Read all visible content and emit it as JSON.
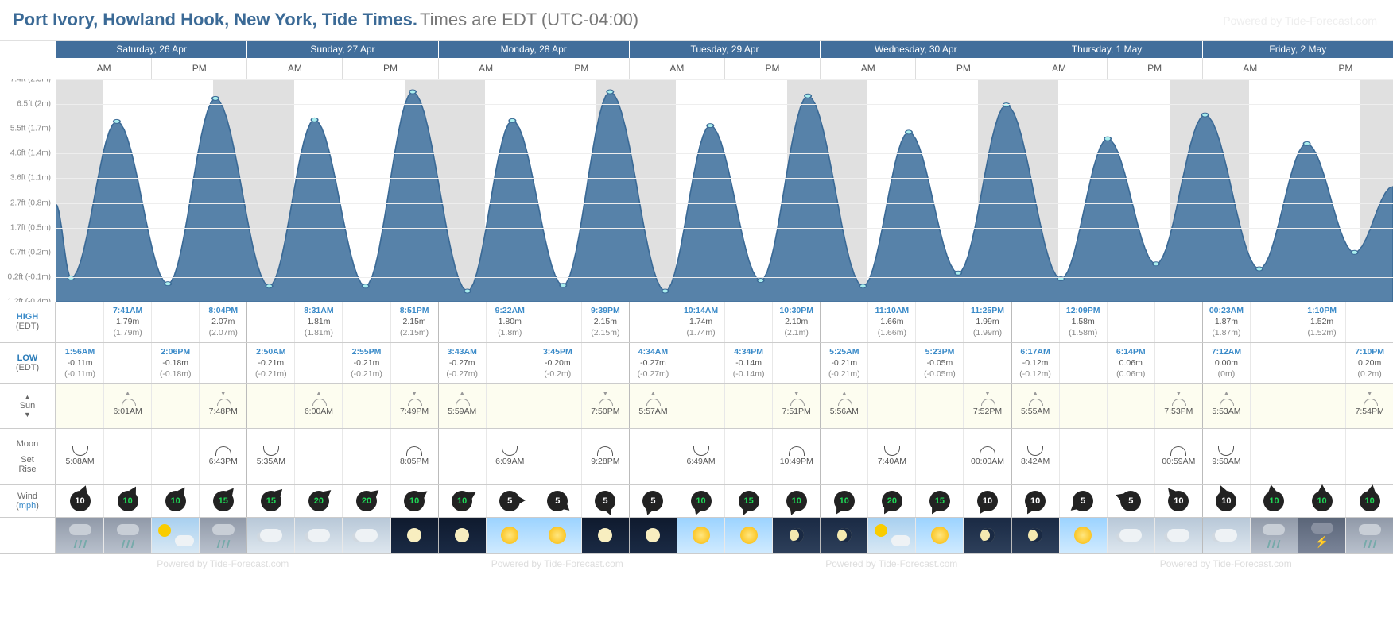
{
  "title": {
    "location": "Port Ivory, Howland Hook, New York, Tide Times.",
    "subtitle": "Times are EDT (UTC-04:00)"
  },
  "watermark": "Powered by Tide-Forecast.com",
  "row_labels": {
    "high": "HIGH",
    "low": "LOW",
    "tz": "(EDT)",
    "sun": "Sun",
    "moon": "Moon",
    "moon_set": "Set",
    "moon_rise": "Rise",
    "wind": "Wind",
    "wind_unit": "mph"
  },
  "yaxis": {
    "labels": [
      "7.4ft (2.3m)",
      "6.5ft (2m)",
      "5.5ft (1.7m)",
      "4.6ft (1.4m)",
      "3.6ft (1.1m)",
      "2.7ft (0.8m)",
      "1.7ft (0.5m)",
      "0.7ft (0.2m)",
      "0.2ft (-0.1m)",
      "1.2ft (-0.4m)"
    ],
    "heights_m": [
      2.3,
      2.0,
      1.7,
      1.4,
      1.1,
      0.8,
      0.5,
      0.2,
      -0.1,
      -0.4
    ],
    "range_m": [
      -0.4,
      2.3
    ]
  },
  "days": [
    {
      "label": "Saturday, 26 Apr"
    },
    {
      "label": "Sunday, 27 Apr"
    },
    {
      "label": "Monday, 28 Apr"
    },
    {
      "label": "Tuesday, 29 Apr"
    },
    {
      "label": "Wednesday, 30 Apr"
    },
    {
      "label": "Thursday, 1 May"
    },
    {
      "label": "Friday, 2 May"
    }
  ],
  "ampm": [
    "AM",
    "PM"
  ],
  "night_shades": [
    {
      "start": 0,
      "end": 0.251
    },
    {
      "start": 0.825,
      "end": 1.25
    },
    {
      "start": 1.826,
      "end": 2.249
    },
    {
      "start": 2.827,
      "end": 3.248
    },
    {
      "start": 3.827,
      "end": 4.247
    },
    {
      "start": 4.828,
      "end": 5.246
    },
    {
      "start": 5.829,
      "end": 6.245
    },
    {
      "start": 6.829,
      "end": 7
    }
  ],
  "tide_extremes": [
    {
      "type": "low",
      "day": 0,
      "hour": 1.93,
      "m": -0.11
    },
    {
      "type": "high",
      "day": 0,
      "hour": 7.68,
      "m": 1.79
    },
    {
      "type": "low",
      "day": 0,
      "hour": 14.1,
      "m": -0.18
    },
    {
      "type": "high",
      "day": 0,
      "hour": 20.07,
      "m": 2.07
    },
    {
      "type": "low",
      "day": 1,
      "hour": 2.83,
      "m": -0.21
    },
    {
      "type": "high",
      "day": 1,
      "hour": 8.52,
      "m": 1.81
    },
    {
      "type": "low",
      "day": 1,
      "hour": 14.92,
      "m": -0.21
    },
    {
      "type": "high",
      "day": 1,
      "hour": 20.85,
      "m": 2.15
    },
    {
      "type": "low",
      "day": 2,
      "hour": 3.72,
      "m": -0.27
    },
    {
      "type": "high",
      "day": 2,
      "hour": 9.37,
      "m": 1.8
    },
    {
      "type": "low",
      "day": 2,
      "hour": 15.75,
      "m": -0.2
    },
    {
      "type": "high",
      "day": 2,
      "hour": 21.65,
      "m": 2.15
    },
    {
      "type": "low",
      "day": 3,
      "hour": 4.57,
      "m": -0.27
    },
    {
      "type": "high",
      "day": 3,
      "hour": 10.23,
      "m": 1.74
    },
    {
      "type": "low",
      "day": 3,
      "hour": 16.57,
      "m": -0.14
    },
    {
      "type": "high",
      "day": 3,
      "hour": 22.5,
      "m": 2.1
    },
    {
      "type": "low",
      "day": 4,
      "hour": 5.42,
      "m": -0.21
    },
    {
      "type": "high",
      "day": 4,
      "hour": 11.17,
      "m": 1.66
    },
    {
      "type": "low",
      "day": 4,
      "hour": 17.38,
      "m": -0.05
    },
    {
      "type": "high",
      "day": 4,
      "hour": 23.42,
      "m": 1.99
    },
    {
      "type": "low",
      "day": 5,
      "hour": 6.28,
      "m": -0.12
    },
    {
      "type": "high",
      "day": 5,
      "hour": 12.15,
      "m": 1.58
    },
    {
      "type": "low",
      "day": 5,
      "hour": 18.23,
      "m": 0.06
    },
    {
      "type": "high",
      "day": 6,
      "hour": 0.38,
      "m": 1.87
    },
    {
      "type": "low",
      "day": 6,
      "hour": 7.2,
      "m": 0.0
    },
    {
      "type": "high",
      "day": 6,
      "hour": 13.17,
      "m": 1.52
    },
    {
      "type": "low",
      "day": 6,
      "hour": 19.17,
      "m": 0.2
    }
  ],
  "slots": [
    {
      "high": null,
      "low": {
        "time": "1:56AM",
        "m": "-0.11m",
        "p": "(-0.11m)"
      },
      "sun": null,
      "moon": {
        "type": "rise",
        "time": "5:08AM"
      },
      "wind": {
        "spd": 10,
        "dir": 20,
        "c": "black"
      },
      "wx": "rain"
    },
    {
      "high": {
        "time": "7:41AM",
        "m": "1.79m",
        "p": "(1.79m)"
      },
      "low": null,
      "sun": {
        "type": "rise",
        "time": "6:01AM"
      },
      "moon": null,
      "wind": {
        "spd": 10,
        "dir": 30,
        "c": "green"
      },
      "wx": "rain"
    },
    {
      "high": null,
      "low": {
        "time": "2:06PM",
        "m": "-0.18m",
        "p": "(-0.18m)"
      },
      "sun": null,
      "moon": null,
      "wind": {
        "spd": 10,
        "dir": 35,
        "c": "green"
      },
      "wx": "partly"
    },
    {
      "high": {
        "time": "8:04PM",
        "m": "2.07m",
        "p": "(2.07m)"
      },
      "low": null,
      "sun": {
        "type": "set",
        "time": "7:48PM"
      },
      "moon": {
        "type": "set",
        "time": "6:43PM"
      },
      "wind": {
        "spd": 15,
        "dir": 40,
        "c": "green"
      },
      "wx": "rain"
    },
    {
      "high": null,
      "low": {
        "time": "2:50AM",
        "m": "-0.21m",
        "p": "(-0.21m)"
      },
      "sun": null,
      "moon": {
        "type": "rise",
        "time": "5:35AM"
      },
      "wind": {
        "spd": 15,
        "dir": 45,
        "c": "green"
      },
      "wx": "cloudy"
    },
    {
      "high": {
        "time": "8:31AM",
        "m": "1.81m",
        "p": "(1.81m)"
      },
      "low": null,
      "sun": {
        "type": "rise",
        "time": "6:00AM"
      },
      "moon": null,
      "wind": {
        "spd": 20,
        "dir": 50,
        "c": "green"
      },
      "wx": "cloudy"
    },
    {
      "high": null,
      "low": {
        "time": "2:55PM",
        "m": "-0.21m",
        "p": "(-0.21m)"
      },
      "sun": null,
      "moon": null,
      "wind": {
        "spd": 20,
        "dir": 50,
        "c": "green"
      },
      "wx": "cloudy"
    },
    {
      "high": {
        "time": "8:51PM",
        "m": "2.15m",
        "p": "(2.15m)"
      },
      "low": null,
      "sun": {
        "type": "set",
        "time": "7:49PM"
      },
      "moon": {
        "type": "set",
        "time": "8:05PM"
      },
      "wind": {
        "spd": 10,
        "dir": 55,
        "c": "green"
      },
      "wx": "clear-night"
    },
    {
      "high": null,
      "low": {
        "time": "3:43AM",
        "m": "-0.27m",
        "p": "(-0.27m)"
      },
      "sun": {
        "type": "rise",
        "time": "5:59AM"
      },
      "moon": null,
      "wind": {
        "spd": 10,
        "dir": 60,
        "c": "green"
      },
      "wx": "clear-night"
    },
    {
      "high": {
        "time": "9:22AM",
        "m": "1.80m",
        "p": "(1.8m)"
      },
      "low": null,
      "sun": null,
      "moon": {
        "type": "rise",
        "time": "6:09AM"
      },
      "wind": {
        "spd": 5,
        "dir": 90,
        "c": "black"
      },
      "wx": "sunny"
    },
    {
      "high": null,
      "low": {
        "time": "3:45PM",
        "m": "-0.20m",
        "p": "(-0.2m)"
      },
      "sun": null,
      "moon": null,
      "wind": {
        "spd": 5,
        "dir": 130,
        "c": "black"
      },
      "wx": "sunny"
    },
    {
      "high": {
        "time": "9:39PM",
        "m": "2.15m",
        "p": "(2.15m)"
      },
      "low": null,
      "sun": {
        "type": "set",
        "time": "7:50PM"
      },
      "moon": {
        "type": "set",
        "time": "9:28PM"
      },
      "wind": {
        "spd": 5,
        "dir": 160,
        "c": "black"
      },
      "wx": "clear-night"
    },
    {
      "high": null,
      "low": {
        "time": "4:34AM",
        "m": "-0.27m",
        "p": "(-0.27m)"
      },
      "sun": {
        "type": "rise",
        "time": "5:57AM"
      },
      "moon": null,
      "wind": {
        "spd": 5,
        "dir": 200,
        "c": "black"
      },
      "wx": "clear-night"
    },
    {
      "high": {
        "time": "10:14AM",
        "m": "1.74m",
        "p": "(1.74m)"
      },
      "low": null,
      "sun": null,
      "moon": {
        "type": "rise",
        "time": "6:49AM"
      },
      "wind": {
        "spd": 10,
        "dir": 200,
        "c": "green"
      },
      "wx": "sunny"
    },
    {
      "high": null,
      "low": {
        "time": "4:34PM",
        "m": "-0.14m",
        "p": "(-0.14m)"
      },
      "sun": null,
      "moon": null,
      "wind": {
        "spd": 15,
        "dir": 200,
        "c": "green"
      },
      "wx": "sunny"
    },
    {
      "high": {
        "time": "10:30PM",
        "m": "2.10m",
        "p": "(2.1m)"
      },
      "low": null,
      "sun": {
        "type": "set",
        "time": "7:51PM"
      },
      "moon": {
        "type": "set",
        "time": "10:49PM"
      },
      "wind": {
        "spd": 10,
        "dir": 200,
        "c": "green"
      },
      "wx": "night"
    },
    {
      "high": null,
      "low": {
        "time": "5:25AM",
        "m": "-0.21m",
        "p": "(-0.21m)"
      },
      "sun": {
        "type": "rise",
        "time": "5:56AM"
      },
      "moon": null,
      "wind": {
        "spd": 10,
        "dir": 210,
        "c": "green"
      },
      "wx": "night"
    },
    {
      "high": {
        "time": "11:10AM",
        "m": "1.66m",
        "p": "(1.66m)"
      },
      "low": null,
      "sun": null,
      "moon": {
        "type": "rise",
        "time": "7:40AM"
      },
      "wind": {
        "spd": 20,
        "dir": 210,
        "c": "green"
      },
      "wx": "partly"
    },
    {
      "high": null,
      "low": {
        "time": "5:23PM",
        "m": "-0.05m",
        "p": "(-0.05m)"
      },
      "sun": null,
      "moon": null,
      "wind": {
        "spd": 15,
        "dir": 210,
        "c": "green"
      },
      "wx": "sunny"
    },
    {
      "high": {
        "time": "11:25PM",
        "m": "1.99m",
        "p": "(1.99m)"
      },
      "low": null,
      "sun": {
        "type": "set",
        "time": "7:52PM"
      },
      "moon": {
        "type": "set",
        "time": "00:00AM"
      },
      "wind": {
        "spd": 10,
        "dir": 210,
        "c": "black"
      },
      "wx": "night"
    },
    {
      "high": null,
      "low": {
        "time": "6:17AM",
        "m": "-0.12m",
        "p": "(-0.12m)"
      },
      "sun": {
        "type": "rise",
        "time": "5:55AM"
      },
      "moon": {
        "type": "rise",
        "time": "8:42AM"
      },
      "wind": {
        "spd": 10,
        "dir": 210,
        "c": "black"
      },
      "wx": "night"
    },
    {
      "high": {
        "time": "12:09PM",
        "m": "1.58m",
        "p": "(1.58m)"
      },
      "low": null,
      "sun": null,
      "moon": null,
      "wind": {
        "spd": 5,
        "dir": 230,
        "c": "black"
      },
      "wx": "sunny"
    },
    {
      "high": null,
      "low": {
        "time": "6:14PM",
        "m": "0.06m",
        "p": "(0.06m)"
      },
      "sun": null,
      "moon": null,
      "wind": {
        "spd": 5,
        "dir": 290,
        "c": "black"
      },
      "wx": "cloudy"
    },
    {
      "high": null,
      "low": null,
      "sun": {
        "type": "set",
        "time": "7:53PM"
      },
      "moon": {
        "type": "set",
        "time": "00:59AM"
      },
      "wind": {
        "spd": 10,
        "dir": 320,
        "c": "black"
      },
      "wx": "cloudy"
    },
    {
      "high": {
        "time": "00:23AM",
        "m": "1.87m",
        "p": "(1.87m)"
      },
      "low": {
        "time": "7:12AM",
        "m": "0.00m",
        "p": "(0m)"
      },
      "sun": {
        "type": "rise",
        "time": "5:53AM"
      },
      "moon": {
        "type": "rise",
        "time": "9:50AM"
      },
      "wind": {
        "spd": 10,
        "dir": 340,
        "c": "black"
      },
      "wx": "cloudy"
    },
    {
      "high": null,
      "low": null,
      "sun": null,
      "moon": null,
      "wind": {
        "spd": 10,
        "dir": 350,
        "c": "green"
      },
      "wx": "rain"
    },
    {
      "high": {
        "time": "1:10PM",
        "m": "1.52m",
        "p": "(1.52m)"
      },
      "low": null,
      "sun": null,
      "moon": null,
      "wind": {
        "spd": 10,
        "dir": 0,
        "c": "green"
      },
      "wx": "storm"
    },
    {
      "high": null,
      "low": {
        "time": "7:10PM",
        "m": "0.20m",
        "p": "(0.2m)"
      },
      "sun": {
        "type": "set",
        "time": "7:54PM"
      },
      "moon": null,
      "wind": {
        "spd": 10,
        "dir": 10,
        "c": "green"
      },
      "wx": "rain"
    }
  ],
  "colors": {
    "tide_fill": "#5782a9",
    "tide_stroke": "#3b6a96",
    "header_bg": "#426e9b",
    "night": "#e0e0e0"
  }
}
